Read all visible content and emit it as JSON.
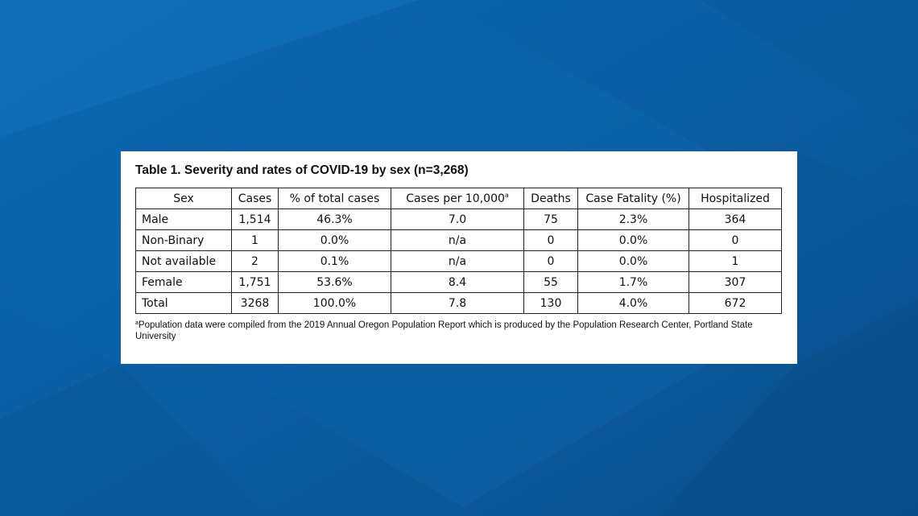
{
  "colors": {
    "background_dark": "#0a4f8a",
    "background_mid": "#0b5ea3",
    "background_light": "#1a73bd",
    "card": "#ffffff"
  },
  "table": {
    "title": "Table 1. Severity and rates of COVID-19 by sex (n=3,268)",
    "headers": {
      "sex": "Sex",
      "cases": "Cases",
      "pct_total": "% of total cases",
      "per_10000": "Cases per 10,000",
      "per_10000_sup": "a",
      "deaths": "Deaths",
      "fatality": "Case Fatality (%)",
      "hospitalized": "Hospitalized"
    },
    "rows": [
      {
        "sex": "Male",
        "cases": "1,514",
        "pct_total": "46.3%",
        "per_10000": "7.0",
        "deaths": "75",
        "fatality": "2.3%",
        "hospitalized": "364"
      },
      {
        "sex": "Non-Binary",
        "cases": "1",
        "pct_total": "0.0%",
        "per_10000": "n/a",
        "deaths": "0",
        "fatality": "0.0%",
        "hospitalized": "0"
      },
      {
        "sex": "Not available",
        "cases": "2",
        "pct_total": "0.1%",
        "per_10000": "n/a",
        "deaths": "0",
        "fatality": "0.0%",
        "hospitalized": "1"
      },
      {
        "sex": "Female",
        "cases": "1,751",
        "pct_total": "53.6%",
        "per_10000": "8.4",
        "deaths": "55",
        "fatality": "1.7%",
        "hospitalized": "307"
      },
      {
        "sex": "Total",
        "cases": "3268",
        "pct_total": "100.0%",
        "per_10000": "7.8",
        "deaths": "130",
        "fatality": "4.0%",
        "hospitalized": "672"
      }
    ],
    "footnote_sup": "a",
    "footnote": "Population data were compiled from the 2019 Annual Oregon Population Report which is produced by the Population Research Center, Portland State University"
  }
}
